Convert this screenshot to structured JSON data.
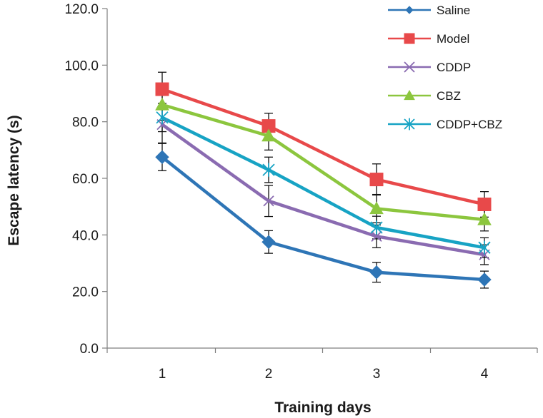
{
  "chart_data": {
    "type": "line",
    "title": "",
    "xlabel": "Training days",
    "ylabel": "Escape latency (s)",
    "x": [
      "1",
      "2",
      "3",
      "4"
    ],
    "ylim": [
      0,
      120
    ],
    "yticks": [
      "0.0",
      "20.0",
      "40.0",
      "60.0",
      "80.0",
      "100.0",
      "120.0"
    ],
    "legend_position": "top-right",
    "grid": false,
    "series": [
      {
        "name": "Saline",
        "color": "#2e75b6",
        "marker": "diamond",
        "values": [
          67.5,
          37.5,
          26.8,
          24.2
        ],
        "errors": [
          4.8,
          4.0,
          3.5,
          3.0
        ]
      },
      {
        "name": "Model",
        "color": "#e8494a",
        "marker": "square",
        "values": [
          91.5,
          78.5,
          59.6,
          50.8
        ],
        "errors": [
          6.0,
          4.5,
          5.5,
          4.5
        ]
      },
      {
        "name": "CDDP",
        "color": "#8a6bb1",
        "marker": "x",
        "values": [
          79.0,
          52.0,
          39.5,
          33.0
        ],
        "errors": [
          6.5,
          5.5,
          4.0,
          3.5
        ]
      },
      {
        "name": "CBZ",
        "color": "#8cc63e",
        "marker": "triangle",
        "values": [
          86.0,
          75.0,
          49.3,
          45.4
        ],
        "errors": [
          5.5,
          5.0,
          5.0,
          4.0
        ]
      },
      {
        "name": "CDDP+CBZ",
        "color": "#17a3c4",
        "marker": "asterisk",
        "values": [
          81.5,
          63.0,
          42.6,
          35.5
        ],
        "errors": [
          5.0,
          4.5,
          4.0,
          3.5
        ]
      }
    ]
  }
}
